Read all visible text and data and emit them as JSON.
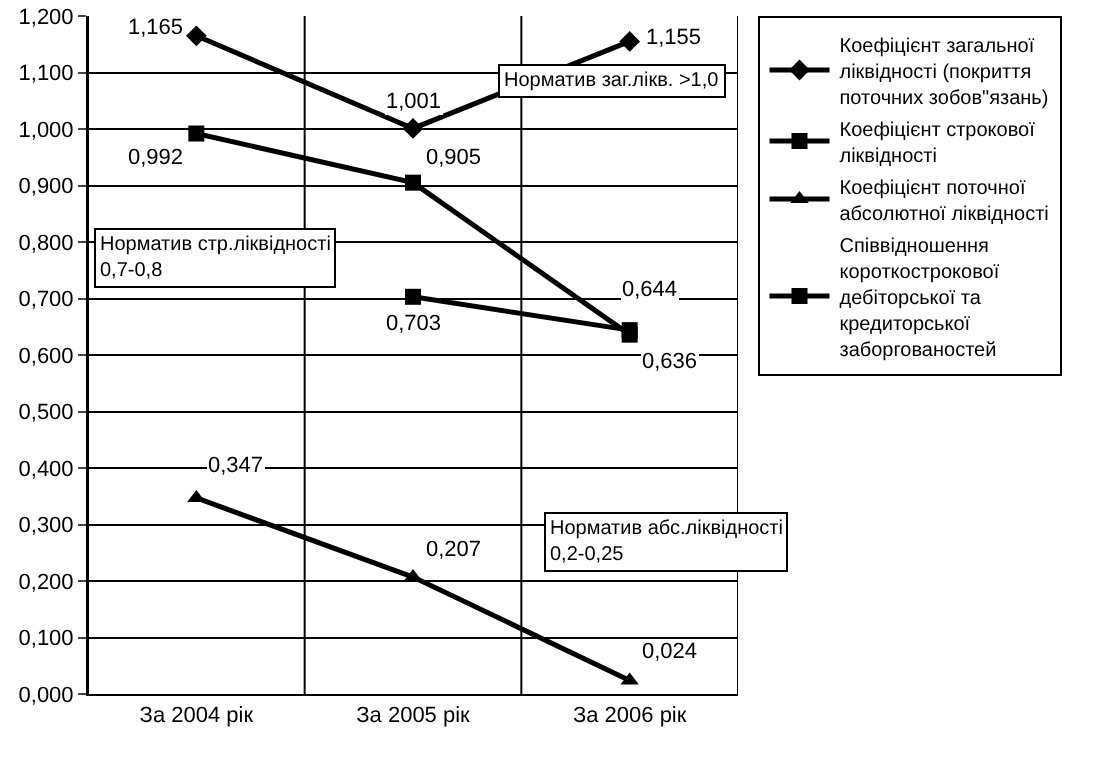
{
  "chart_data": {
    "type": "line",
    "categories": [
      "За 2004 рік",
      "За 2005 рік",
      "За 2006 рік"
    ],
    "series": [
      {
        "name": "Коефіцієнт загальної ліквідності (покриття поточних зобов\"язань)",
        "color": "#000000",
        "marker": "diamond",
        "values": [
          1.165,
          1.001,
          1.155
        ],
        "value_labels": [
          "1,165",
          "1,001",
          "1,155"
        ]
      },
      {
        "name": "Коефіцієнт строкової ліквідності",
        "color": "#000000",
        "marker": "square",
        "values": [
          0.992,
          0.905,
          0.636
        ],
        "value_labels": [
          "0,992",
          "0,905",
          "0,636"
        ]
      },
      {
        "name": "Коефіцієнт поточної абсолютної ліквідності",
        "color": "#000000",
        "marker": "triangle",
        "values": [
          0.347,
          0.207,
          0.024
        ],
        "value_labels": [
          "0,347",
          "0,207",
          "0,024"
        ]
      },
      {
        "name": "Співвідношення короткострокової дебіторської та кредиторської заборгованостей",
        "color": "#000000",
        "marker": "square",
        "values": [
          null,
          0.703,
          0.644
        ],
        "value_labels": [
          null,
          "0,703",
          "0,644"
        ]
      }
    ],
    "ylim": [
      0,
      1.2
    ],
    "yticks": [
      {
        "value": 0,
        "label": "0,000"
      },
      {
        "value": 0.1,
        "label": "0,100"
      },
      {
        "value": 0.2,
        "label": "0,200"
      },
      {
        "value": 0.3,
        "label": "0,300"
      },
      {
        "value": 0.4,
        "label": "0,400"
      },
      {
        "value": 0.5,
        "label": "0,500"
      },
      {
        "value": 0.6,
        "label": "0,600"
      },
      {
        "value": 0.7,
        "label": "0,700"
      },
      {
        "value": 0.8,
        "label": "0,800"
      },
      {
        "value": 0.9,
        "label": "0,900"
      },
      {
        "value": 1.0,
        "label": "1,000"
      },
      {
        "value": 1.1,
        "label": "1,100"
      },
      {
        "value": 1.2,
        "label": "1,200"
      }
    ],
    "annotations": [
      "Норматив заг.лікв. >1,0",
      "Норматив стр.ліквідності 0,7-0,8",
      "Норматив абс.ліквідності 0,2-0,25"
    ],
    "grid": true,
    "legend": "right",
    "line_style": "solid"
  }
}
